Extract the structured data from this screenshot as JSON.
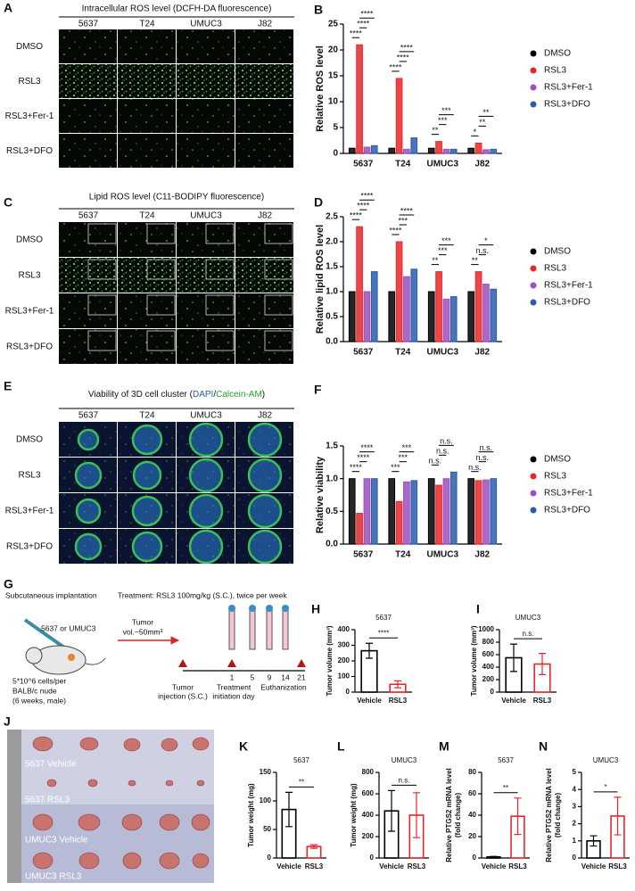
{
  "image_panels": {
    "A": {
      "letter": "A",
      "title": "Intracellular ROS level (DCFH-DA fluorescence)",
      "columns": [
        "5637",
        "T24",
        "UMUC3",
        "J82"
      ],
      "rows": [
        "DMSO",
        "RSL3",
        "RSL3+Fer-1",
        "RSL3+DFO"
      ]
    },
    "C": {
      "letter": "C",
      "title": "Lipid ROS level (C11-BODIPY fluorescence)",
      "columns": [
        "5637",
        "T24",
        "UMUC3",
        "J82"
      ],
      "rows": [
        "DMSO",
        "RSL3",
        "RSL3+Fer-1",
        "RSL3+DFO"
      ]
    },
    "E": {
      "letter": "E",
      "title_parts": [
        "Viability of 3D cell cluster (",
        "DAPI",
        "/",
        "Calcein-AM",
        ")"
      ],
      "columns": [
        "5637",
        "T24",
        "UMUC3",
        "J82"
      ],
      "rows": [
        "DMSO",
        "RSL3",
        "RSL3+Fer-1",
        "RSL3+DFO"
      ]
    }
  },
  "schematic": {
    "letter": "G",
    "heading": "Subcutaneous implantation",
    "treatment": "Treatment: RSL3 100mg/kg (S.C.), twice per week",
    "cell_lines": "5637 or UMUC3",
    "mouse": [
      "5*10^6 cells/per",
      "BALB/c nude",
      "(6 weeks, male)"
    ],
    "tumor_volume": [
      "Tumor",
      "vol.~50mm³"
    ],
    "days": [
      "1",
      "5",
      "9",
      "14",
      "21"
    ],
    "events": [
      [
        "Tumor",
        "injection (S.C.)"
      ],
      [
        "Treatment",
        "initiation day"
      ],
      [
        "Euthanization"
      ]
    ]
  },
  "photo": {
    "letter": "J",
    "labels": [
      "5637 Vehicle",
      "5637 RSL3",
      "UMUC3 Vehicle",
      "UMUC3 RSL3"
    ]
  },
  "chart_data": [
    {
      "panel": "B",
      "type": "grouped_bar",
      "ylabel": "Relative ROS level",
      "categories": [
        "5637",
        "T24",
        "UMUC3",
        "J82"
      ],
      "series": [
        {
          "name": "DMSO",
          "color": "#000000",
          "values": [
            1,
            1,
            1,
            1
          ]
        },
        {
          "name": "RSL3",
          "color": "#e8262a",
          "values": [
            21,
            14.5,
            2.3,
            2
          ]
        },
        {
          "name": "RSL3+Fer-1",
          "color": "#9b4fc0",
          "values": [
            1.2,
            0.8,
            0.8,
            0.7
          ]
        },
        {
          "name": "RSL3+DFO",
          "color": "#2a5caa",
          "values": [
            1.5,
            3,
            0.8,
            0.8
          ]
        }
      ],
      "ylim": [
        0,
        25
      ],
      "yticks": [
        0,
        5,
        10,
        15,
        20,
        25
      ],
      "significance": [
        {
          "group": "5637",
          "pair": [
            "DMSO",
            "RSL3"
          ],
          "label": "****"
        },
        {
          "group": "5637",
          "pair": [
            "RSL3",
            "RSL3+Fer-1"
          ],
          "label": "****"
        },
        {
          "group": "5637",
          "pair": [
            "RSL3",
            "RSL3+DFO"
          ],
          "label": "****"
        },
        {
          "group": "T24",
          "pair": [
            "DMSO",
            "RSL3"
          ],
          "label": "****"
        },
        {
          "group": "T24",
          "pair": [
            "RSL3",
            "RSL3+Fer-1"
          ],
          "label": "****"
        },
        {
          "group": "T24",
          "pair": [
            "RSL3",
            "RSL3+DFO"
          ],
          "label": "****"
        },
        {
          "group": "UMUC3",
          "pair": [
            "DMSO",
            "RSL3"
          ],
          "label": "**"
        },
        {
          "group": "UMUC3",
          "pair": [
            "RSL3",
            "RSL3+Fer-1"
          ],
          "label": "***"
        },
        {
          "group": "UMUC3",
          "pair": [
            "RSL3",
            "RSL3+DFO"
          ],
          "label": "***"
        },
        {
          "group": "J82",
          "pair": [
            "DMSO",
            "RSL3"
          ],
          "label": "*"
        },
        {
          "group": "J82",
          "pair": [
            "RSL3",
            "RSL3+Fer-1"
          ],
          "label": "**"
        },
        {
          "group": "J82",
          "pair": [
            "RSL3",
            "RSL3+DFO"
          ],
          "label": "**"
        }
      ]
    },
    {
      "panel": "D",
      "type": "grouped_bar",
      "ylabel": "Relative lipid ROS level",
      "categories": [
        "5637",
        "T24",
        "UMUC3",
        "J82"
      ],
      "series": [
        {
          "name": "DMSO",
          "color": "#000000",
          "values": [
            1,
            1,
            1,
            1
          ]
        },
        {
          "name": "RSL3",
          "color": "#e8262a",
          "values": [
            2.3,
            2.0,
            1.4,
            1.4
          ]
        },
        {
          "name": "RSL3+Fer-1",
          "color": "#9b4fc0",
          "values": [
            1.0,
            1.3,
            0.85,
            1.15
          ]
        },
        {
          "name": "RSL3+DFO",
          "color": "#2a5caa",
          "values": [
            1.4,
            1.45,
            0.9,
            1.05
          ]
        }
      ],
      "ylim": [
        0,
        2.5
      ],
      "yticks": [
        {
          "value": 0,
          "label": "0.0"
        },
        0.5,
        {
          "value": 1,
          "label": "1.0"
        },
        1.5,
        {
          "value": 2,
          "label": "2.0"
        },
        2.5
      ],
      "significance": [
        {
          "group": "5637",
          "pair": [
            "DMSO",
            "RSL3"
          ],
          "label": "****"
        },
        {
          "group": "5637",
          "pair": [
            "RSL3",
            "RSL3+Fer-1"
          ],
          "label": "****"
        },
        {
          "group": "5637",
          "pair": [
            "RSL3",
            "RSL3+DFO"
          ],
          "label": "****"
        },
        {
          "group": "T24",
          "pair": [
            "DMSO",
            "RSL3"
          ],
          "label": "****"
        },
        {
          "group": "T24",
          "pair": [
            "RSL3",
            "RSL3+Fer-1"
          ],
          "label": "***"
        },
        {
          "group": "T24",
          "pair": [
            "RSL3",
            "RSL3+DFO"
          ],
          "label": "****"
        },
        {
          "group": "UMUC3",
          "pair": [
            "DMSO",
            "RSL3"
          ],
          "label": "**"
        },
        {
          "group": "UMUC3",
          "pair": [
            "RSL3",
            "RSL3+Fer-1"
          ],
          "label": "***"
        },
        {
          "group": "UMUC3",
          "pair": [
            "RSL3",
            "RSL3+DFO"
          ],
          "label": "***"
        },
        {
          "group": "J82",
          "pair": [
            "DMSO",
            "RSL3"
          ],
          "label": "**"
        },
        {
          "group": "J82",
          "pair": [
            "RSL3",
            "RSL3+Fer-1"
          ],
          "label": "n.s."
        },
        {
          "group": "J82",
          "pair": [
            "RSL3",
            "RSL3+DFO"
          ],
          "label": "*"
        }
      ]
    },
    {
      "panel": "F",
      "type": "grouped_bar",
      "ylabel": "Relative viability",
      "categories": [
        "5637",
        "T24",
        "UMUC3",
        "J82"
      ],
      "series": [
        {
          "name": "DMSO",
          "color": "#000000",
          "values": [
            1,
            1,
            1,
            1
          ]
        },
        {
          "name": "RSL3",
          "color": "#e8262a",
          "values": [
            0.47,
            0.65,
            0.9,
            0.97
          ]
        },
        {
          "name": "RSL3+Fer-1",
          "color": "#9b4fc0",
          "values": [
            1,
            0.95,
            1,
            0.98
          ]
        },
        {
          "name": "RSL3+DFO",
          "color": "#2a5caa",
          "values": [
            1,
            0.97,
            1.1,
            1
          ]
        }
      ],
      "ylim": [
        0,
        1.5
      ],
      "yticks": [
        {
          "value": 0,
          "label": "0.0"
        },
        0.5,
        {
          "value": 1,
          "label": "1.0"
        },
        1.5
      ],
      "significance": [
        {
          "group": "5637",
          "pair": [
            "DMSO",
            "RSL3"
          ],
          "label": "****"
        },
        {
          "group": "5637",
          "pair": [
            "RSL3",
            "RSL3+Fer-1"
          ],
          "label": "****"
        },
        {
          "group": "5637",
          "pair": [
            "RSL3",
            "RSL3+DFO"
          ],
          "label": "****"
        },
        {
          "group": "T24",
          "pair": [
            "DMSO",
            "RSL3"
          ],
          "label": "***"
        },
        {
          "group": "T24",
          "pair": [
            "RSL3",
            "RSL3+Fer-1"
          ],
          "label": "***"
        },
        {
          "group": "T24",
          "pair": [
            "RSL3",
            "RSL3+DFO"
          ],
          "label": "***"
        },
        {
          "group": "UMUC3",
          "pair": [
            "DMSO",
            "RSL3"
          ],
          "label": "n.s."
        },
        {
          "group": "UMUC3",
          "pair": [
            "RSL3",
            "RSL3+Fer-1"
          ],
          "label": "n.s."
        },
        {
          "group": "UMUC3",
          "pair": [
            "RSL3",
            "RSL3+DFO"
          ],
          "label": "n.s."
        },
        {
          "group": "J82",
          "pair": [
            "DMSO",
            "RSL3"
          ],
          "label": "n.s."
        },
        {
          "group": "J82",
          "pair": [
            "RSL3",
            "RSL3+Fer-1"
          ],
          "label": "n.s."
        },
        {
          "group": "J82",
          "pair": [
            "RSL3",
            "RSL3+DFO"
          ],
          "label": "n.s."
        }
      ]
    },
    {
      "panel": "H",
      "type": "bar",
      "title": "5637",
      "ylabel": "Tumor volume (mm³)",
      "categories": [
        "Vehicle",
        "RSL3"
      ],
      "values": [
        265,
        50
      ],
      "errors": [
        48,
        22
      ],
      "colors": [
        "#000000",
        "#e8262a"
      ],
      "ylim": [
        0,
        400
      ],
      "yticks": [
        0,
        100,
        200,
        300,
        400
      ],
      "significance": "****"
    },
    {
      "panel": "I",
      "type": "bar",
      "title": "UMUC3",
      "ylabel": "Tumor volume (mm³)",
      "categories": [
        "Vehicle",
        "RSL3"
      ],
      "values": [
        550,
        450
      ],
      "errors": [
        220,
        170
      ],
      "colors": [
        "#000000",
        "#e8262a"
      ],
      "ylim": [
        0,
        1000
      ],
      "yticks": [
        0,
        200,
        400,
        600,
        800,
        1000
      ],
      "significance": "n.s."
    },
    {
      "panel": "K",
      "type": "bar",
      "title": "5637",
      "ylabel": "Tumor weight (mg)",
      "categories": [
        "Vehicle",
        "RSL3"
      ],
      "values": [
        85,
        20
      ],
      "errors": [
        30,
        3
      ],
      "colors": [
        "#000000",
        "#e8262a"
      ],
      "ylim": [
        0,
        150
      ],
      "yticks": [
        0,
        50,
        100,
        150
      ],
      "significance": "**"
    },
    {
      "panel": "L",
      "type": "bar",
      "title": "UMUC3",
      "ylabel": "Tumor weight (mg)",
      "categories": [
        "Vehicle",
        "RSL3"
      ],
      "values": [
        440,
        400
      ],
      "errors": [
        190,
        210
      ],
      "colors": [
        "#000000",
        "#e8262a"
      ],
      "ylim": [
        0,
        800
      ],
      "yticks": [
        0,
        200,
        400,
        600,
        800
      ],
      "significance": "n.s."
    },
    {
      "panel": "M",
      "type": "bar",
      "title": "5637",
      "ylabel": [
        "Relative PTGS2 mRNA level",
        "(fold change)"
      ],
      "categories": [
        "Vehicle",
        "RSL3"
      ],
      "values": [
        1,
        39
      ],
      "errors": [
        0.5,
        17
      ],
      "colors": [
        "#000000",
        "#e8262a"
      ],
      "ylim": [
        0,
        80
      ],
      "yticks": [
        0,
        20,
        40,
        60,
        80
      ],
      "significance": "**"
    },
    {
      "panel": "N",
      "type": "bar",
      "title": "UMUC3",
      "ylabel": [
        "Relative PTGS2 mRNA level",
        "(fold change)"
      ],
      "categories": [
        "Vehicle",
        "RSL3"
      ],
      "values": [
        1,
        2.45
      ],
      "errors": [
        0.3,
        1.1
      ],
      "colors": [
        "#000000",
        "#e8262a"
      ],
      "ylim": [
        0,
        5
      ],
      "yticks": [
        0,
        1,
        2,
        3,
        4,
        5
      ],
      "significance": "*"
    }
  ]
}
